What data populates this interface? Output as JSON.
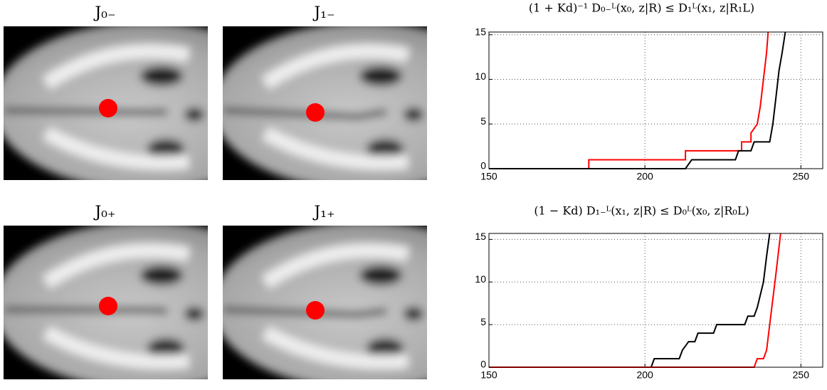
{
  "images": [
    {
      "label": "J₀₋"
    },
    {
      "label": "J₁₋"
    },
    {
      "label": "J₀₊"
    },
    {
      "label": "J₁₊"
    }
  ],
  "chart_data": [
    {
      "type": "line",
      "title": "(1 + Kd)⁻¹ D₀₋ᴸ(x₀, z|R) ≤ D₁ᴸ(x₁, z|R₁L)",
      "xlim": [
        150,
        257
      ],
      "xticks": [
        150,
        200,
        250
      ],
      "ylim": [
        0,
        15.3
      ],
      "yticks": [
        0,
        5,
        10,
        15
      ],
      "grid": true,
      "series": [
        {
          "color": "#ff0000",
          "x": [
            150,
            182,
            182,
            213,
            213,
            231,
            231,
            234,
            234,
            236,
            237,
            238,
            239,
            239.5
          ],
          "values": [
            0,
            0,
            1,
            1,
            2,
            2,
            3,
            3,
            4,
            5,
            7,
            10,
            13,
            15.3
          ]
        },
        {
          "color": "#000000",
          "x": [
            150,
            213,
            215,
            229,
            230,
            234,
            235,
            240,
            241,
            242,
            243,
            244,
            245
          ],
          "values": [
            0,
            0,
            1,
            1,
            2,
            2,
            3,
            3,
            5,
            8,
            11,
            13,
            15.3
          ]
        }
      ]
    },
    {
      "type": "line",
      "title": "(1 − Kd) D₁₋ᴸ(x₁, z|R) ≤ D₀ᴸ(x₀, z|R₀L)",
      "xlim": [
        150,
        257
      ],
      "xticks": [
        150,
        200,
        250
      ],
      "ylim": [
        0,
        15.7
      ],
      "yticks": [
        0,
        5,
        10,
        15
      ],
      "grid": true,
      "series": [
        {
          "color": "#000000",
          "x": [
            150,
            202,
            203,
            211,
            212,
            214,
            216,
            217,
            222,
            223,
            232,
            233,
            235,
            236,
            238,
            239,
            240
          ],
          "values": [
            0,
            0,
            1,
            1,
            2,
            3,
            3,
            4,
            4,
            5,
            5,
            6,
            6,
            7,
            10,
            13,
            15.7
          ]
        },
        {
          "color": "#ff0000",
          "x": [
            150,
            235,
            236,
            238,
            239,
            240,
            241,
            242,
            243.5
          ],
          "values": [
            0,
            0,
            1,
            1,
            2,
            5,
            8,
            11,
            15.7
          ]
        }
      ]
    }
  ]
}
